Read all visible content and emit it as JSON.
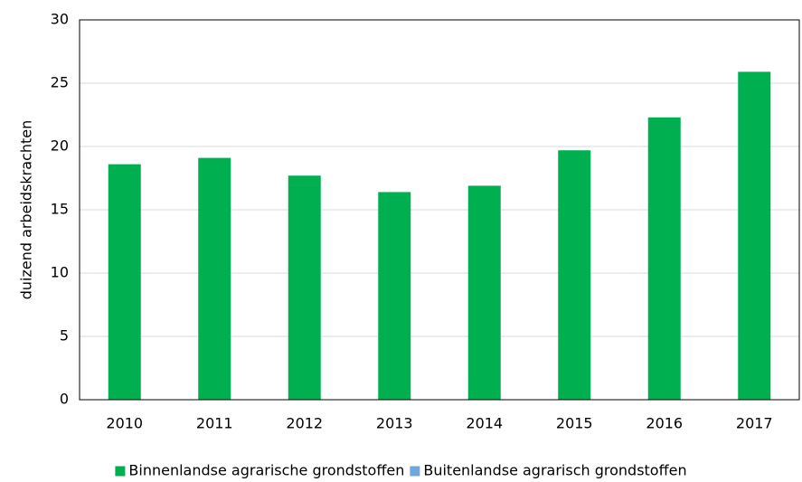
{
  "chart_data": {
    "type": "bar",
    "stacked": true,
    "y_label": "duizend arbeidskrachten",
    "categories": [
      "2010",
      "2011",
      "2012",
      "2013",
      "2014",
      "2015",
      "2016",
      "2017"
    ],
    "series": [
      {
        "name": "Binnenlandse agrarische grondstoffen",
        "color": "#00b050",
        "values": [
          18.6,
          19.1,
          17.7,
          16.4,
          16.9,
          19.7,
          22.3,
          25.9
        ]
      },
      {
        "name": "Buitenlandse agrarisch grondstoffen",
        "color": "#6fa8dc",
        "values": [
          0,
          0,
          0,
          0,
          0,
          0,
          0,
          0
        ]
      }
    ],
    "ylim": [
      0,
      30
    ],
    "yticks": [
      0,
      5,
      10,
      15,
      20,
      25,
      30
    ],
    "grid": true,
    "legend": "bottom"
  }
}
